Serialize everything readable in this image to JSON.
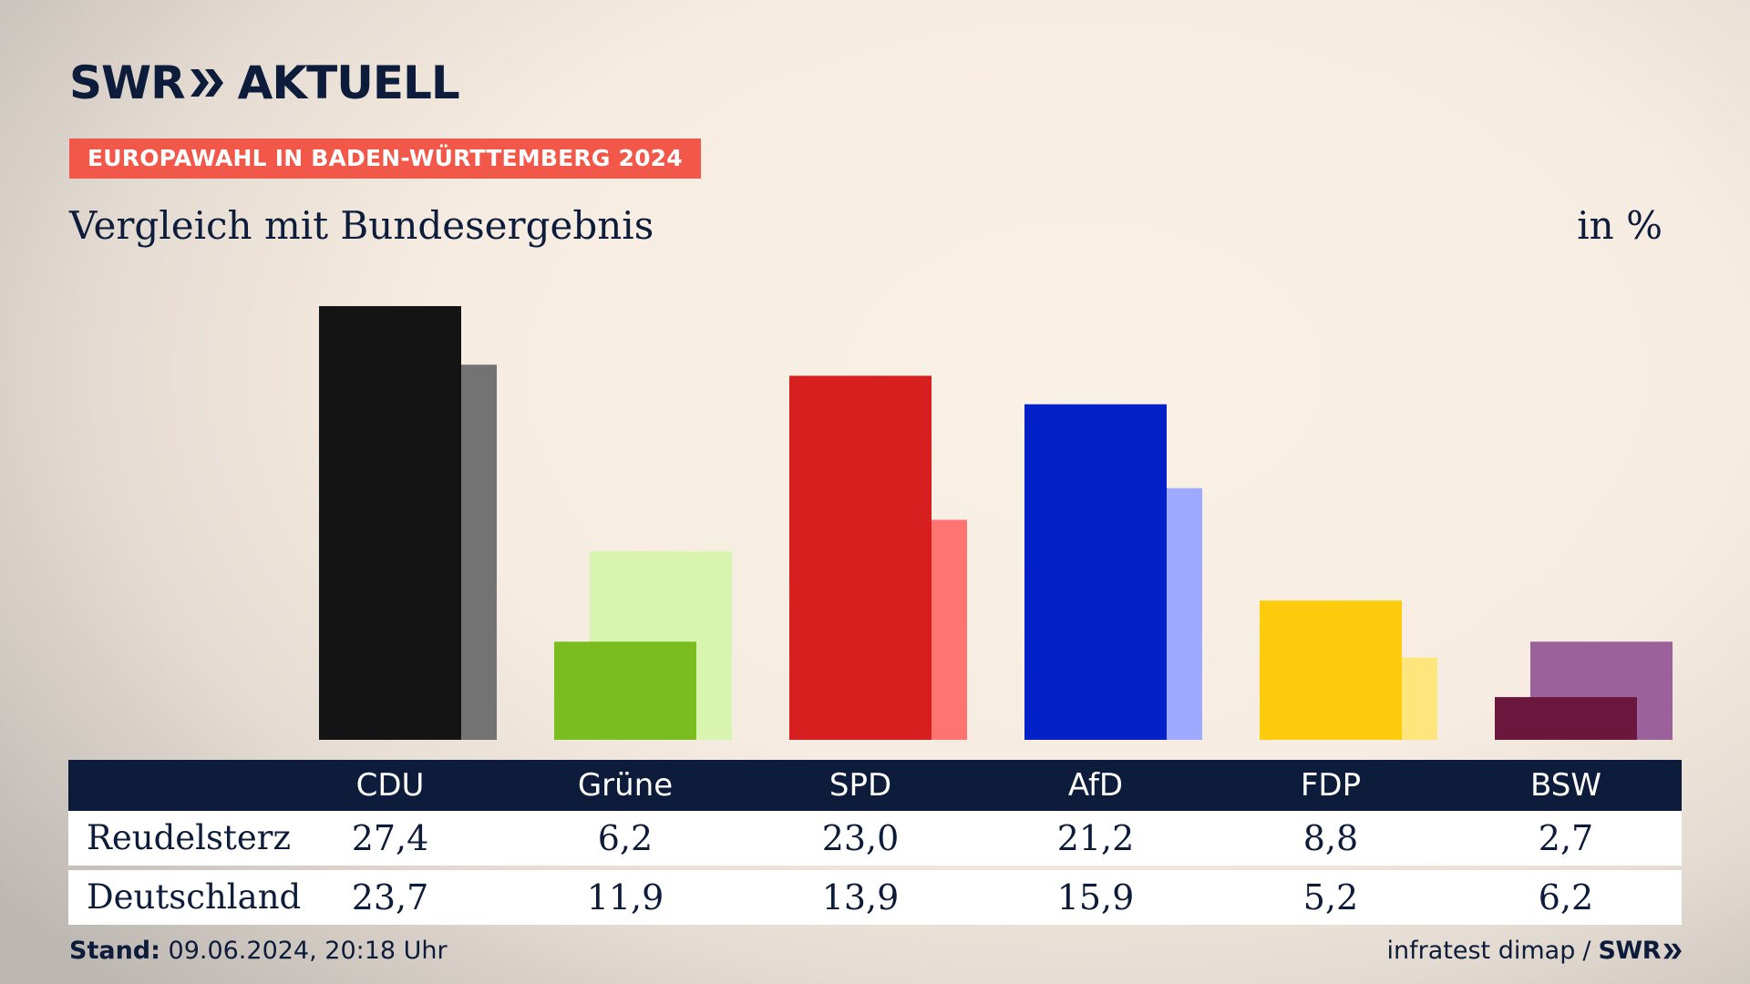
{
  "brand": {
    "logo_prefix": "SWR",
    "logo_name": "AKTUELL"
  },
  "header": {
    "badge": "EUROPAWAHL IN BADEN-WÜRTTEMBERG 2024",
    "subtitle": "Vergleich mit Bundesergebnis",
    "unit": "in %"
  },
  "chart_data": {
    "type": "bar",
    "categories": [
      "CDU",
      "Grüne",
      "SPD",
      "AfD",
      "FDP",
      "BSW"
    ],
    "series": [
      {
        "name": "Reudelsterz",
        "values": [
          27.4,
          6.2,
          23.0,
          21.2,
          8.8,
          2.7
        ]
      },
      {
        "name": "Deutschland",
        "values": [
          23.7,
          11.9,
          13.9,
          15.9,
          5.2,
          6.2
        ]
      }
    ],
    "ylim": [
      0,
      27.4
    ],
    "colors": {
      "primary": [
        "#141414",
        "#7bbd1e",
        "#d81f1f",
        "#0221c9",
        "#fecc0c",
        "#6b173d"
      ],
      "secondary": [
        "#747373",
        "#d7f5ae",
        "#ff7470",
        "#9eaaff",
        "#fee57c",
        "#9b619a"
      ]
    },
    "grid": false,
    "legend": "table-below"
  },
  "table": {
    "headers": [
      "CDU",
      "Grüne",
      "SPD",
      "AfD",
      "FDP",
      "BSW"
    ],
    "rows": [
      {
        "label": "Reudelsterz",
        "values": [
          "27,4",
          "6,2",
          "23,0",
          "21,2",
          "8,8",
          "2,7"
        ]
      },
      {
        "label": "Deutschland",
        "values": [
          "23,7",
          "11,9",
          "13,9",
          "15,9",
          "5,2",
          "6,2"
        ]
      }
    ]
  },
  "footer": {
    "stand_label": "Stand:",
    "stand_value": "09.06.2024, 20:18 Uhr",
    "source": "infratest dimap",
    "separator": "/",
    "brand": "SWR"
  }
}
